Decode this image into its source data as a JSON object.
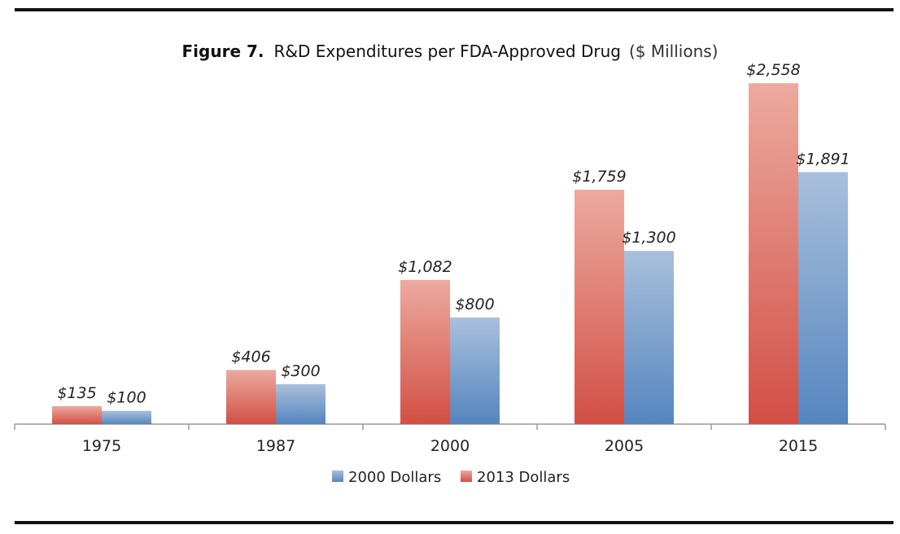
{
  "chart_data": {
    "type": "bar",
    "title_prefix": "Figure 7.",
    "title": "R&D Expenditures per FDA-Approved Drug",
    "title_unit": "($ Millions)",
    "categories": [
      "1975",
      "1987",
      "2000",
      "2005",
      "2015"
    ],
    "series": [
      {
        "name": "2013 Dollars",
        "values": [
          135,
          406,
          1082,
          1759,
          2558
        ],
        "labels": [
          "$135",
          "$406",
          "$1,082",
          "$1,759",
          "$2,558"
        ],
        "color_top": "#ecaaa0",
        "color_bottom": "#d24f45"
      },
      {
        "name": "2000 Dollars",
        "values": [
          100,
          300,
          800,
          1300,
          1891
        ],
        "labels": [
          "$100",
          "$300",
          "$800",
          "$1,300",
          "$1,891"
        ],
        "color_top": "#a9c0dc",
        "color_bottom": "#5585bf"
      }
    ],
    "legend_order": [
      "2000 Dollars",
      "2013 Dollars"
    ],
    "legend_position": "bottom-center",
    "ylim": [
      0,
      2700
    ],
    "grid": false,
    "xlabel": "",
    "ylabel": ""
  }
}
